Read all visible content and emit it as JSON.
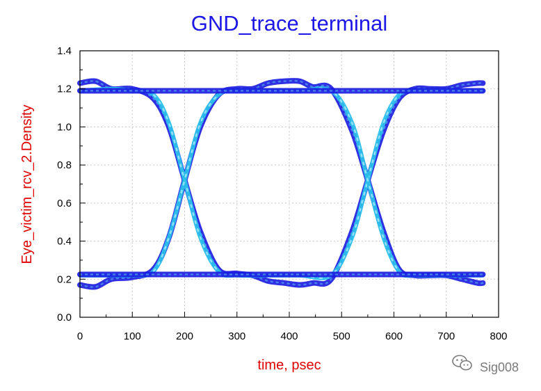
{
  "chart_data": {
    "type": "line",
    "title": "GND_trace_terminal",
    "xlabel": "time, psec",
    "ylabel": "Eye_victim_rcv_2.Density",
    "xlim": [
      0,
      800
    ],
    "ylim": [
      0.0,
      1.4
    ],
    "xticks": [
      "0",
      "100",
      "200",
      "300",
      "400",
      "500",
      "600",
      "700",
      "800"
    ],
    "yticks": [
      "0.0",
      "0.2",
      "0.4",
      "0.6",
      "0.8",
      "1.0",
      "1.2",
      "1.4"
    ],
    "grid": true,
    "colors": {
      "dark": "#1a1ae0",
      "light": "#2cc0ea",
      "mid": "#4a8ae8",
      "title": "#1c16e6",
      "labels": "#e00000"
    },
    "series": [
      {
        "color": "#1a1ae0",
        "x": [
          0,
          30,
          60,
          100,
          140,
          170,
          200,
          230,
          265,
          300,
          330,
          360,
          390,
          420,
          445,
          480,
          520,
          550,
          580,
          610,
          640,
          670,
          700,
          730,
          760,
          770
        ],
        "y": [
          1.23,
          1.24,
          1.2,
          1.2,
          1.15,
          1.0,
          0.72,
          0.45,
          0.25,
          0.23,
          0.22,
          0.19,
          0.18,
          0.17,
          0.18,
          0.2,
          0.45,
          0.72,
          0.98,
          1.15,
          1.2,
          1.2,
          1.2,
          1.22,
          1.23,
          1.23
        ]
      },
      {
        "color": "#1a1ae0",
        "x": [
          0,
          30,
          60,
          100,
          140,
          170,
          200,
          230,
          265,
          300,
          330,
          360,
          390,
          420,
          445,
          480,
          520,
          550,
          580,
          610,
          640,
          670,
          700,
          730,
          760,
          770
        ],
        "y": [
          0.17,
          0.16,
          0.2,
          0.21,
          0.25,
          0.42,
          0.72,
          1.0,
          1.17,
          1.2,
          1.2,
          1.23,
          1.24,
          1.24,
          1.21,
          1.2,
          0.98,
          0.72,
          0.45,
          0.25,
          0.22,
          0.22,
          0.22,
          0.2,
          0.18,
          0.18
        ]
      },
      {
        "color": "#2cc0ea",
        "x": [
          0,
          60,
          100,
          140,
          170,
          200,
          230,
          265,
          300,
          360,
          420,
          480,
          520,
          550,
          580,
          610,
          640,
          700,
          770
        ],
        "y": [
          1.19,
          1.2,
          1.19,
          1.17,
          1.02,
          0.72,
          0.42,
          0.24,
          0.22,
          0.22,
          0.22,
          0.22,
          0.42,
          0.72,
          1.02,
          1.17,
          1.19,
          1.19,
          1.19
        ]
      },
      {
        "color": "#2cc0ea",
        "x": [
          0,
          60,
          100,
          140,
          170,
          200,
          230,
          265,
          300,
          360,
          420,
          480,
          520,
          550,
          580,
          610,
          640,
          700,
          770
        ],
        "y": [
          0.22,
          0.22,
          0.22,
          0.24,
          0.42,
          0.72,
          1.02,
          1.17,
          1.19,
          1.19,
          1.19,
          1.19,
          1.02,
          0.72,
          0.42,
          0.24,
          0.22,
          0.22,
          0.22
        ]
      },
      {
        "color": "#1a1ae0",
        "x": [
          0,
          770
        ],
        "y": [
          1.19,
          1.19
        ]
      },
      {
        "color": "#1a1ae0",
        "x": [
          0,
          770
        ],
        "y": [
          0.225,
          0.225
        ]
      }
    ]
  },
  "watermark": {
    "text": "Sig008",
    "icon": "wechat-icon"
  }
}
